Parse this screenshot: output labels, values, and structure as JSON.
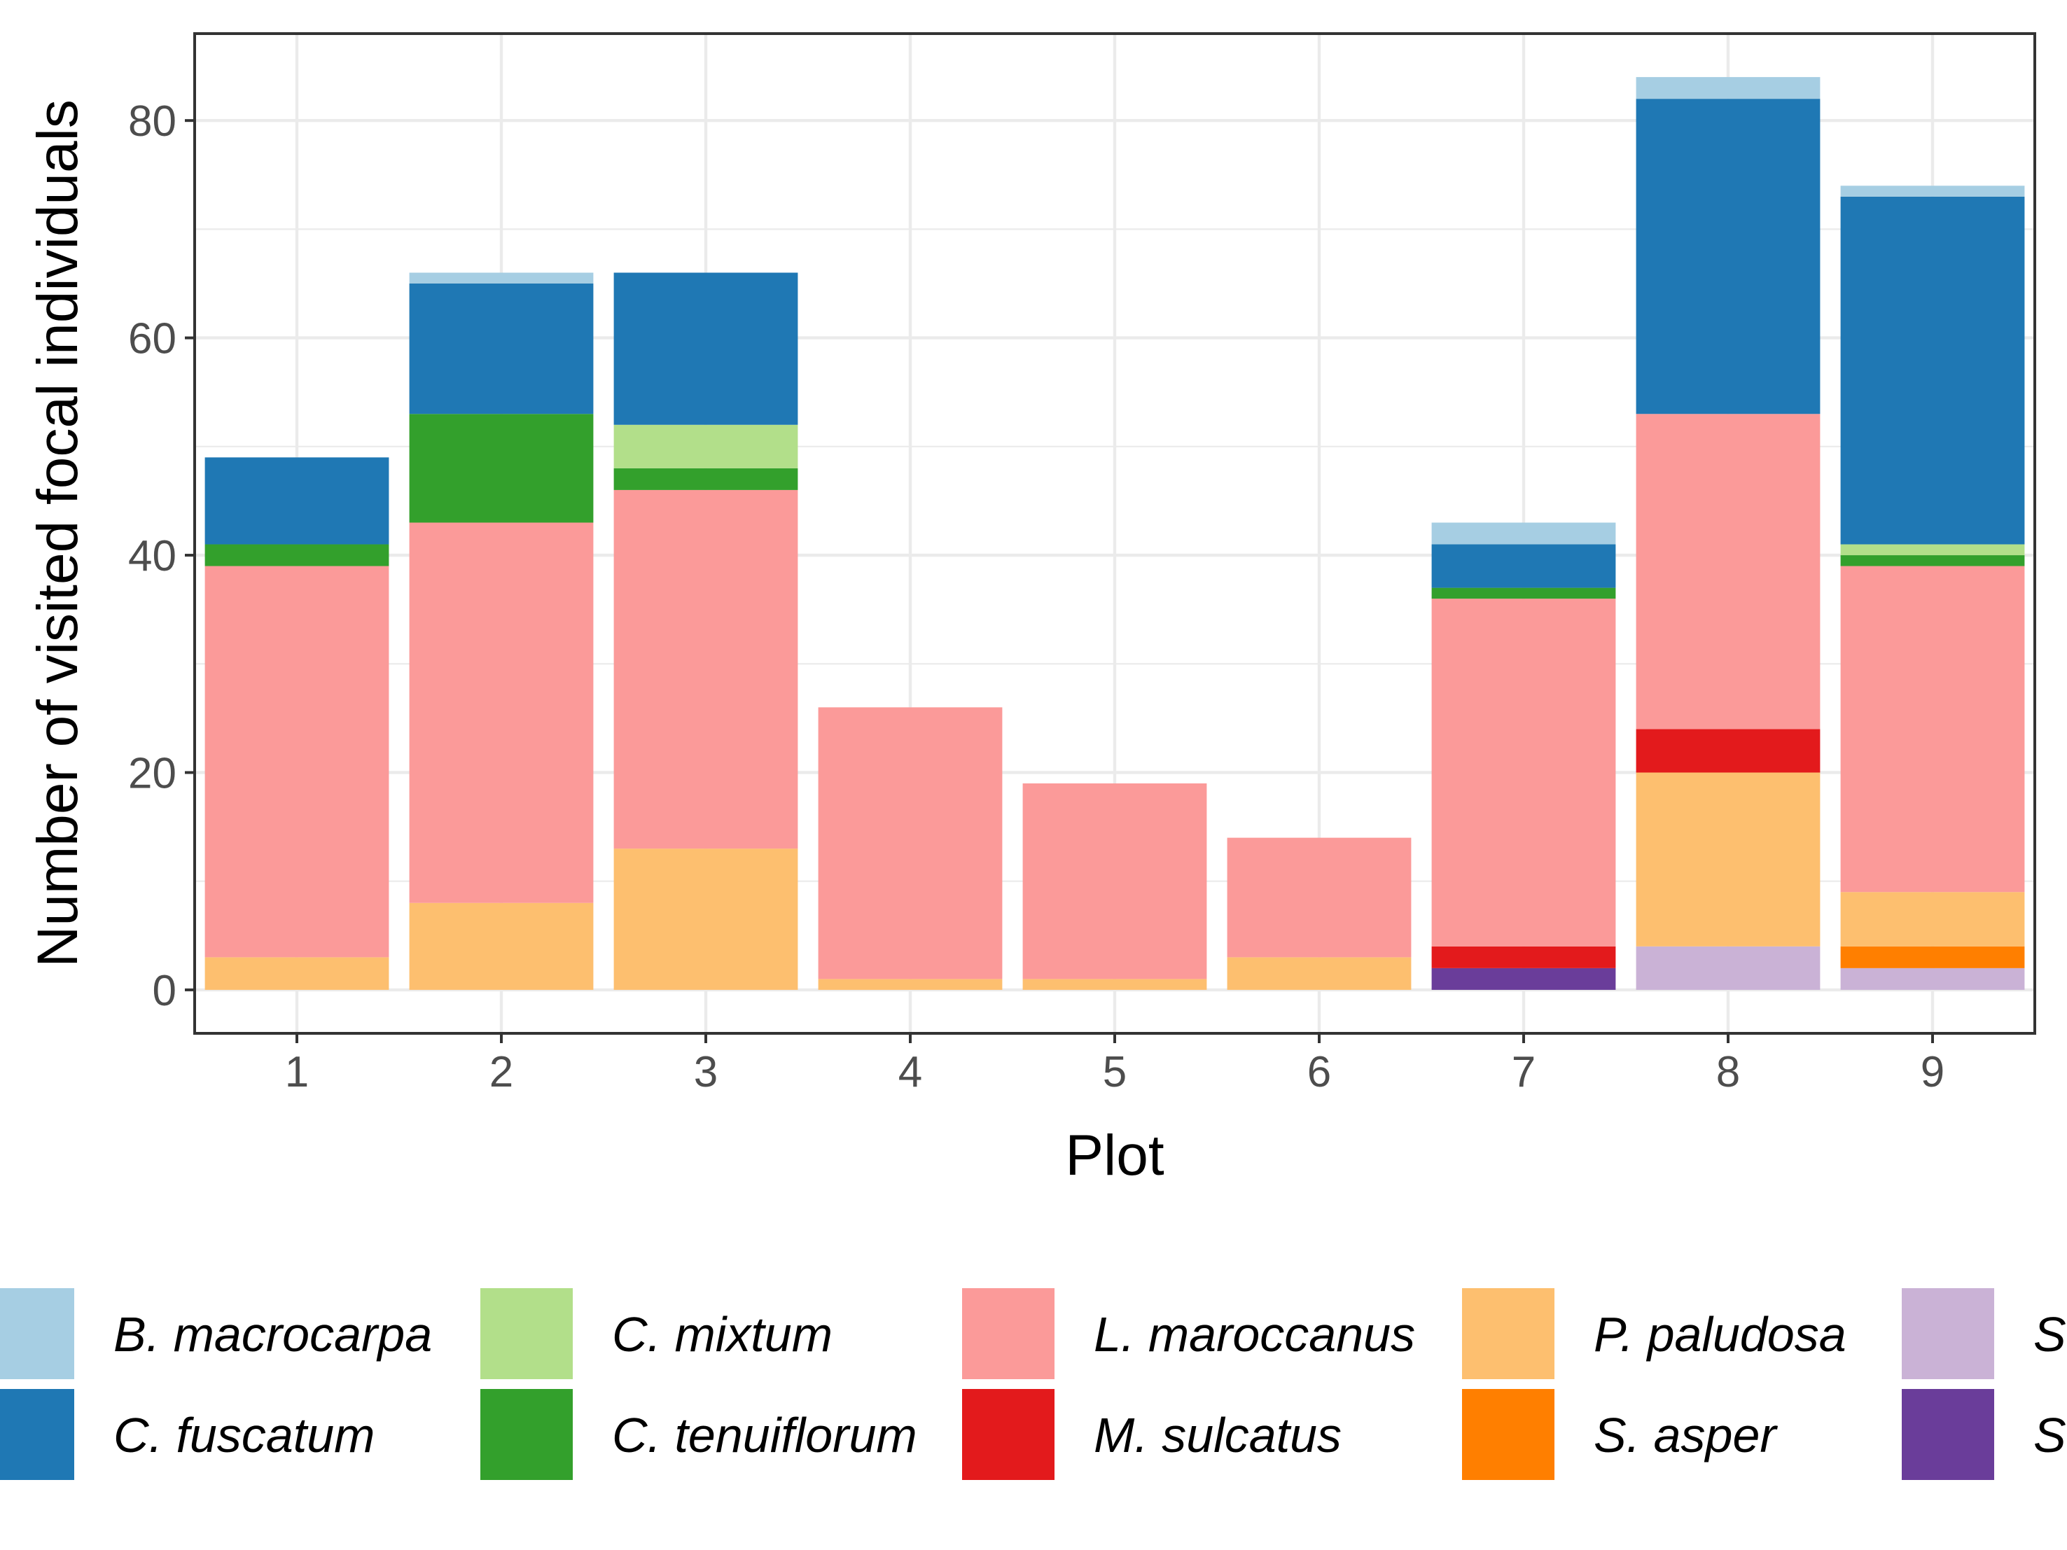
{
  "chart_data": {
    "type": "bar",
    "stacked": true,
    "xlabel": "Plot",
    "ylabel": "Number of visited focal individuals",
    "categories": [
      "1",
      "2",
      "3",
      "4",
      "5",
      "6",
      "7",
      "8",
      "9"
    ],
    "ylim": [
      -4,
      88
    ],
    "yticks": [
      0,
      20,
      40,
      60,
      80
    ],
    "grid": true,
    "legend_position": "bottom",
    "series": [
      {
        "name": "S. ",
        "color": "#6a3d9a",
        "values": [
          0,
          0,
          0,
          0,
          0,
          0,
          2,
          0,
          0
        ]
      },
      {
        "name": "S. ",
        "color": "#cab2d6",
        "values": [
          0,
          0,
          0,
          0,
          0,
          0,
          0,
          4,
          2
        ]
      },
      {
        "name": "S. asper",
        "color": "#ff7f00",
        "values": [
          0,
          0,
          0,
          0,
          0,
          0,
          0,
          0,
          2
        ]
      },
      {
        "name": "P. paludosa",
        "color": "#fdbf6f",
        "values": [
          3,
          8,
          13,
          1,
          1,
          3,
          0,
          16,
          5
        ]
      },
      {
        "name": "M. sulcatus",
        "color": "#e31a1c",
        "values": [
          0,
          0,
          0,
          0,
          0,
          0,
          2,
          4,
          0
        ]
      },
      {
        "name": "L. maroccanus",
        "color": "#fb9a99",
        "values": [
          36,
          35,
          33,
          25,
          18,
          11,
          32,
          29,
          30
        ]
      },
      {
        "name": "C. tenuiflorum",
        "color": "#33a02c",
        "values": [
          2,
          10,
          2,
          0,
          0,
          0,
          1,
          0,
          1
        ]
      },
      {
        "name": "C. mixtum",
        "color": "#b2df8a",
        "values": [
          0,
          0,
          4,
          0,
          0,
          0,
          0,
          0,
          1
        ]
      },
      {
        "name": "C. fuscatum",
        "color": "#1f78b4",
        "values": [
          8,
          12,
          14,
          0,
          0,
          0,
          4,
          29,
          32
        ]
      },
      {
        "name": "B. macrocarpa",
        "color": "#a6cee3",
        "values": [
          0,
          1,
          0,
          0,
          0,
          0,
          2,
          2,
          1
        ]
      }
    ]
  },
  "legend": {
    "items": [
      {
        "label": "B. macrocarpa",
        "color": "#a6cee3"
      },
      {
        "label": "C. fuscatum",
        "color": "#1f78b4"
      },
      {
        "label": "C. mixtum",
        "color": "#b2df8a"
      },
      {
        "label": "C. tenuiflorum",
        "color": "#33a02c"
      },
      {
        "label": "L. maroccanus",
        "color": "#fb9a99"
      },
      {
        "label": "M. sulcatus",
        "color": "#e31a1c"
      },
      {
        "label": "P. paludosa",
        "color": "#fdbf6f"
      },
      {
        "label": "S. asper",
        "color": "#ff7f00"
      },
      {
        "label": "S",
        "color": "#cab2d6"
      },
      {
        "label": "S",
        "color": "#6a3d9a"
      }
    ]
  }
}
